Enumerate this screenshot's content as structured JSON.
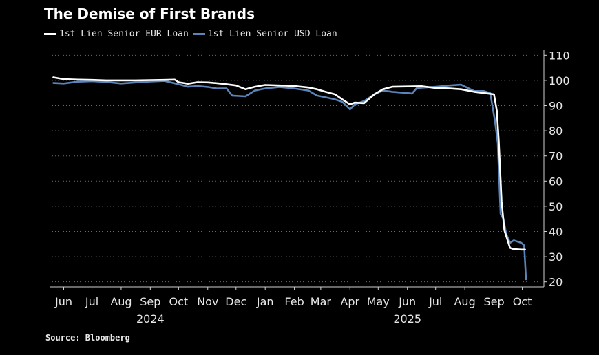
{
  "title": "The Demise of First Brands",
  "source": "Source: Bloomberg",
  "colors": {
    "background": "#000000",
    "eur": "#ffffff",
    "usd": "#5b84b8",
    "grid": "#6a6a6a",
    "axis": "#d0d0d0"
  },
  "chart_data": {
    "type": "line",
    "title": "The Demise of First Brands",
    "xlabel": "",
    "ylabel": "",
    "ylim": [
      18,
      112
    ],
    "y_ticks": [
      20,
      30,
      40,
      50,
      60,
      70,
      80,
      90,
      100,
      110
    ],
    "y_axis_position": "right",
    "grid": "horizontal-dotted",
    "legend": "top-left",
    "x_ticks": [
      {
        "label": "Jun",
        "date": "2024-06-05"
      },
      {
        "label": "Jul",
        "date": "2024-07-05"
      },
      {
        "label": "Aug",
        "date": "2024-08-05"
      },
      {
        "label": "Sep",
        "date": "2024-09-05"
      },
      {
        "label": "Oct",
        "date": "2024-10-05"
      },
      {
        "label": "Nov",
        "date": "2024-11-05"
      },
      {
        "label": "Dec",
        "date": "2024-12-05"
      },
      {
        "label": "Jan",
        "date": "2025-01-05"
      },
      {
        "label": "Feb",
        "date": "2025-02-05"
      },
      {
        "label": "Mar",
        "date": "2025-03-05"
      },
      {
        "label": "Apr",
        "date": "2025-04-05"
      },
      {
        "label": "May",
        "date": "2025-05-05"
      },
      {
        "label": "Jun",
        "date": "2025-06-05"
      },
      {
        "label": "Jul",
        "date": "2025-07-05"
      },
      {
        "label": "Aug",
        "date": "2025-08-05"
      },
      {
        "label": "Sep",
        "date": "2025-09-05"
      },
      {
        "label": "Oct",
        "date": "2025-10-05"
      }
    ],
    "year_labels": [
      {
        "label": "2024",
        "date": "2024-09-05"
      },
      {
        "label": "2025",
        "date": "2025-06-05"
      }
    ],
    "xlim": [
      "2024-05-21",
      "2025-10-28"
    ],
    "series": [
      {
        "name": "1st Lien Senior EUR Loan",
        "color": "#ffffff",
        "points": [
          [
            "2024-05-25",
            101.2
          ],
          [
            "2024-06-05",
            100.5
          ],
          [
            "2024-06-20",
            100.3
          ],
          [
            "2024-07-05",
            100.2
          ],
          [
            "2024-07-20",
            100.0
          ],
          [
            "2024-08-05",
            100.0
          ],
          [
            "2024-08-20",
            100.0
          ],
          [
            "2024-09-05",
            100.1
          ],
          [
            "2024-09-20",
            100.2
          ],
          [
            "2024-10-01",
            100.3
          ],
          [
            "2024-10-05",
            99.3
          ],
          [
            "2024-10-15",
            98.7
          ],
          [
            "2024-10-25",
            99.3
          ],
          [
            "2024-11-05",
            99.2
          ],
          [
            "2024-11-15",
            98.9
          ],
          [
            "2024-11-25",
            98.5
          ],
          [
            "2024-12-05",
            98.0
          ],
          [
            "2024-12-15",
            96.5
          ],
          [
            "2024-12-25",
            97.5
          ],
          [
            "2025-01-05",
            98.2
          ],
          [
            "2025-01-20",
            98.0
          ],
          [
            "2025-02-05",
            97.8
          ],
          [
            "2025-02-20",
            97.2
          ],
          [
            "2025-03-01",
            96.5
          ],
          [
            "2025-03-10",
            95.5
          ],
          [
            "2025-03-20",
            94.5
          ],
          [
            "2025-03-28",
            92.5
          ],
          [
            "2025-04-05",
            90.5
          ],
          [
            "2025-04-10",
            91.2
          ],
          [
            "2025-04-20",
            91.0
          ],
          [
            "2025-05-01",
            94.5
          ],
          [
            "2025-05-10",
            96.5
          ],
          [
            "2025-05-20",
            97.5
          ],
          [
            "2025-06-05",
            97.6
          ],
          [
            "2025-06-20",
            97.7
          ],
          [
            "2025-07-05",
            97.0
          ],
          [
            "2025-07-20",
            96.8
          ],
          [
            "2025-08-01",
            96.5
          ],
          [
            "2025-08-15",
            95.5
          ],
          [
            "2025-08-25",
            95.0
          ],
          [
            "2025-09-05",
            94.5
          ],
          [
            "2025-09-08",
            88.0
          ],
          [
            "2025-09-10",
            76.0
          ],
          [
            "2025-09-13",
            52.0
          ],
          [
            "2025-09-16",
            40.5
          ],
          [
            "2025-09-19",
            37.0
          ],
          [
            "2025-09-22",
            33.5
          ],
          [
            "2025-09-26",
            33.0
          ],
          [
            "2025-10-04",
            32.8
          ],
          [
            "2025-10-08",
            32.8
          ]
        ]
      },
      {
        "name": "1st Lien Senior USD Loan",
        "color": "#5b84b8",
        "points": [
          [
            "2024-05-25",
            99.0
          ],
          [
            "2024-06-05",
            98.8
          ],
          [
            "2024-06-20",
            99.5
          ],
          [
            "2024-07-05",
            99.7
          ],
          [
            "2024-07-20",
            99.4
          ],
          [
            "2024-08-05",
            98.8
          ],
          [
            "2024-08-20",
            99.2
          ],
          [
            "2024-09-05",
            99.6
          ],
          [
            "2024-09-20",
            99.8
          ],
          [
            "2024-10-05",
            98.5
          ],
          [
            "2024-10-15",
            97.5
          ],
          [
            "2024-10-25",
            97.8
          ],
          [
            "2024-11-05",
            97.4
          ],
          [
            "2024-11-15",
            96.8
          ],
          [
            "2024-11-25",
            96.8
          ],
          [
            "2024-12-01",
            94.0
          ],
          [
            "2024-12-15",
            93.7
          ],
          [
            "2024-12-25",
            96.0
          ],
          [
            "2025-01-05",
            96.8
          ],
          [
            "2025-01-20",
            97.4
          ],
          [
            "2025-02-05",
            96.8
          ],
          [
            "2025-02-20",
            96.0
          ],
          [
            "2025-03-01",
            94.0
          ],
          [
            "2025-03-10",
            93.3
          ],
          [
            "2025-03-20",
            92.5
          ],
          [
            "2025-03-28",
            91.5
          ],
          [
            "2025-04-05",
            88.5
          ],
          [
            "2025-04-10",
            90.5
          ],
          [
            "2025-04-20",
            91.8
          ],
          [
            "2025-05-01",
            94.5
          ],
          [
            "2025-05-10",
            96.0
          ],
          [
            "2025-05-20",
            95.5
          ],
          [
            "2025-06-05",
            95.0
          ],
          [
            "2025-06-10",
            94.8
          ],
          [
            "2025-06-15",
            97.0
          ],
          [
            "2025-07-05",
            97.5
          ],
          [
            "2025-07-20",
            98.0
          ],
          [
            "2025-08-01",
            98.3
          ],
          [
            "2025-08-15",
            95.8
          ],
          [
            "2025-08-25",
            95.8
          ],
          [
            "2025-09-01",
            95.0
          ],
          [
            "2025-09-06",
            84.0
          ],
          [
            "2025-09-09",
            75.0
          ],
          [
            "2025-09-12",
            47.0
          ],
          [
            "2025-09-15",
            45.0
          ],
          [
            "2025-09-18",
            39.0
          ],
          [
            "2025-09-22",
            35.5
          ],
          [
            "2025-09-26",
            36.5
          ],
          [
            "2025-10-04",
            35.5
          ],
          [
            "2025-10-07",
            34.5
          ],
          [
            "2025-10-09",
            21.0
          ]
        ]
      }
    ]
  }
}
